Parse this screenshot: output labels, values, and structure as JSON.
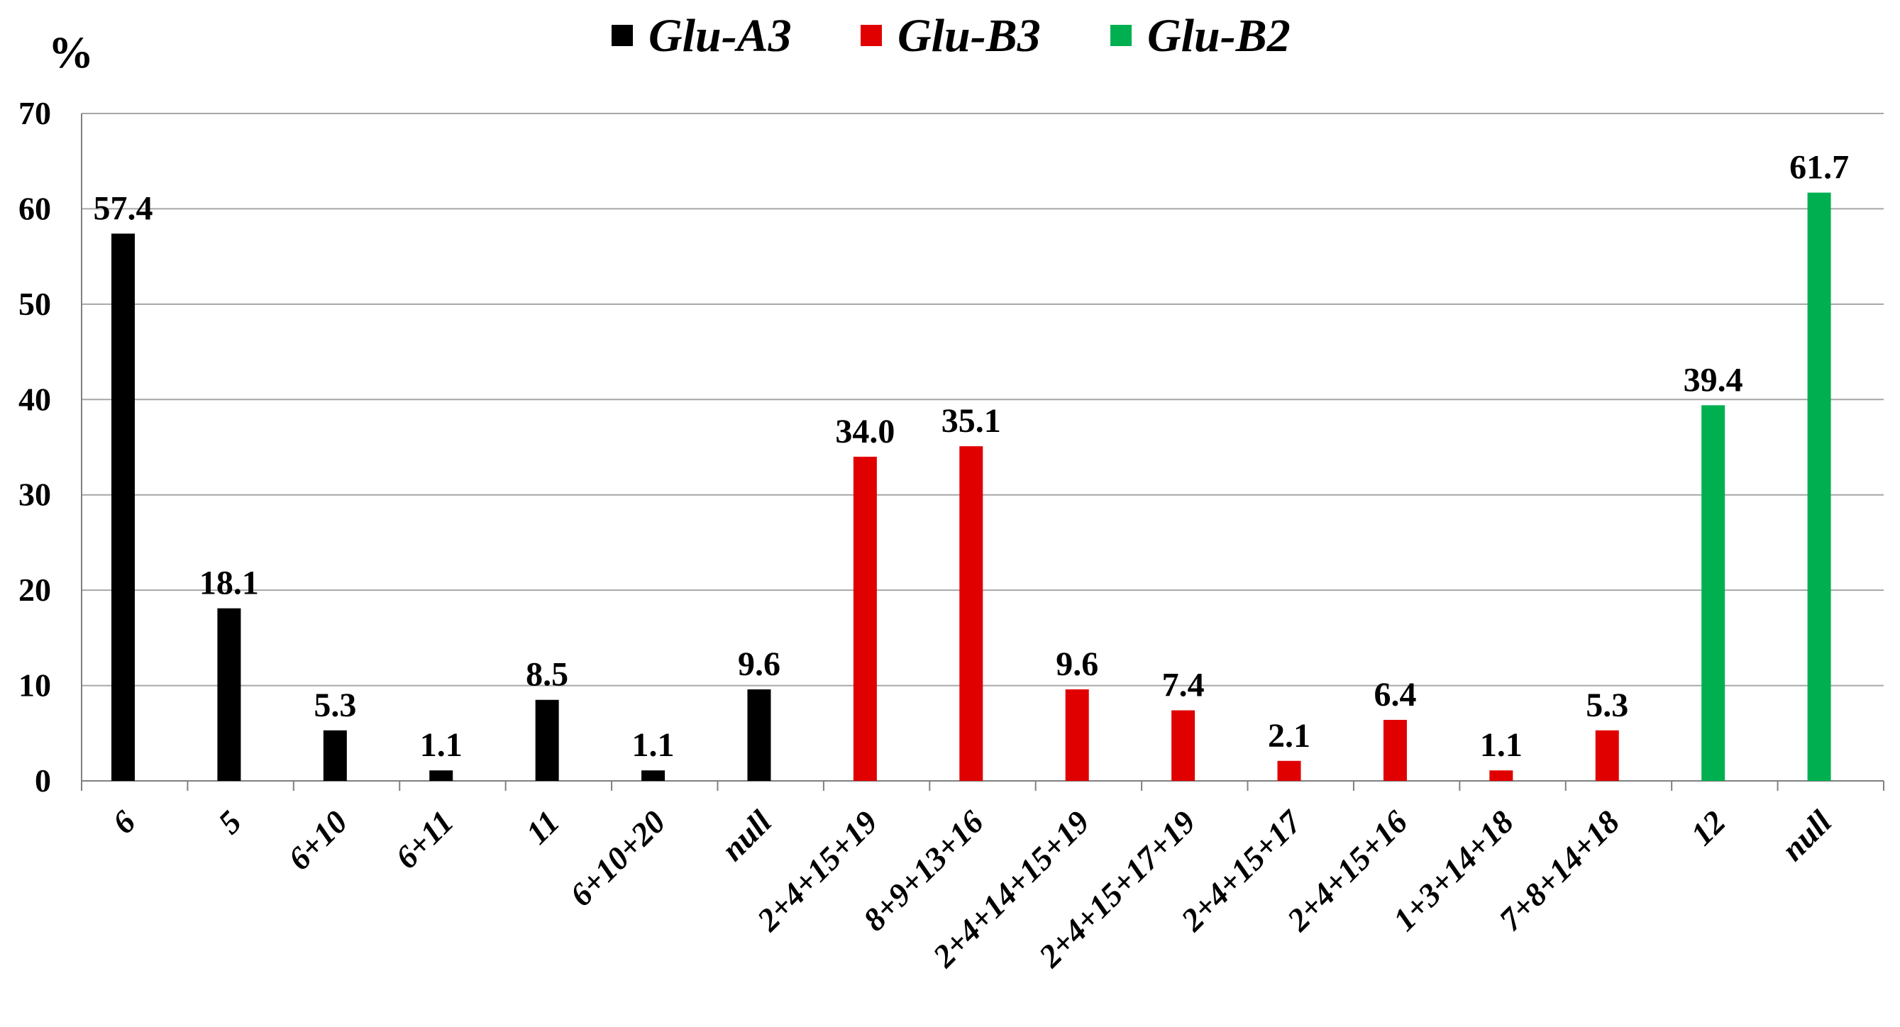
{
  "chart_data": {
    "type": "bar",
    "ylabel": "%",
    "ylim": [
      0,
      70
    ],
    "yticks": [
      0,
      10,
      20,
      30,
      40,
      50,
      60,
      70
    ],
    "grid": true,
    "legend_position": "top-center",
    "series": [
      {
        "name": "Glu-A3",
        "color": "#000000",
        "categories": [
          "6",
          "5",
          "6+10",
          "6+11",
          "11",
          "6+10+20",
          "null"
        ],
        "values": [
          57.4,
          18.1,
          5.3,
          1.1,
          8.5,
          1.1,
          9.6
        ],
        "labels": [
          "57.4",
          "18.1",
          "5.3",
          "1.1",
          "8.5",
          "1.1",
          "9.6"
        ]
      },
      {
        "name": "Glu-B3",
        "color": "#e00000",
        "categories": [
          "2+4+15+19",
          "8+9+13+16",
          "2+4+14+15+19",
          "2+4+15+17+19",
          "2+4+15+17",
          "2+4+15+16",
          "1+3+14+18",
          "7+8+14+18"
        ],
        "values": [
          34.0,
          35.1,
          9.6,
          7.4,
          2.1,
          6.4,
          1.1,
          5.3
        ],
        "labels": [
          "34.0",
          "35.1",
          "9.6",
          "7.4",
          "2.1",
          "6.4",
          "1.1",
          "5.3"
        ]
      },
      {
        "name": "Glu-B2",
        "color": "#00b050",
        "categories": [
          "12",
          "null"
        ],
        "values": [
          39.4,
          61.7
        ],
        "labels": [
          "39.4",
          "61.7"
        ]
      }
    ]
  }
}
